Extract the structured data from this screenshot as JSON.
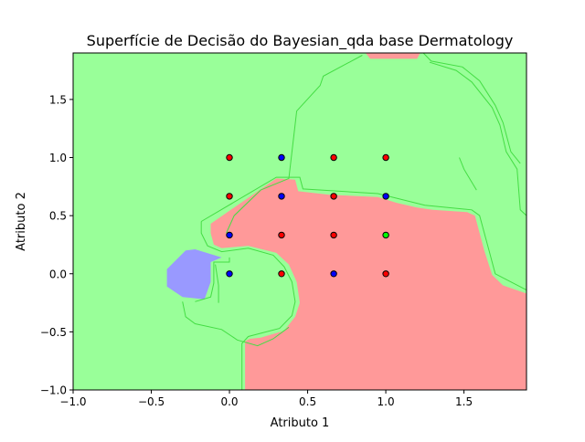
{
  "chart_data": {
    "type": "scatter",
    "title": "Superfície de Decisão do Bayesian_qda base Dermatology",
    "xlabel": "Atributo 1",
    "ylabel": "Atributo 2",
    "xlim": [
      -1.0,
      1.9
    ],
    "ylim": [
      -1.0,
      1.9
    ],
    "x_ticks": [
      -1.0,
      -0.5,
      0.0,
      0.5,
      1.0,
      1.5
    ],
    "y_ticks": [
      -1.0,
      -0.5,
      0.0,
      0.5,
      1.0,
      1.5
    ],
    "x_tick_labels": [
      "−1.0",
      "−0.5",
      "0.0",
      "0.5",
      "1.0",
      "1.5"
    ],
    "y_tick_labels": [
      "−1.0",
      "−0.5",
      "0.0",
      "0.5",
      "1.0",
      "1.5"
    ],
    "grid": false,
    "legend": "none",
    "region_colors": {
      "red": "#ff9999",
      "green": "#99ff99",
      "blue": "#9999ff"
    },
    "point_colors": {
      "red": "#ff0000",
      "green": "#00ff00",
      "blue": "#0000ff"
    },
    "decision_regions": [
      {
        "class": "blue",
        "polygon": [
          [
            -0.28,
            0.2
          ],
          [
            -0.4,
            0.04
          ],
          [
            -0.4,
            -0.11
          ],
          [
            -0.3,
            -0.2
          ],
          [
            -0.16,
            -0.22
          ],
          [
            -0.12,
            -0.07
          ],
          [
            -0.12,
            0.1
          ],
          [
            -0.05,
            0.14
          ],
          [
            -0.22,
            0.21
          ]
        ]
      },
      {
        "class": "red",
        "polygon": [
          [
            0.87,
            1.9
          ],
          [
            1.22,
            1.9
          ],
          [
            1.2,
            1.85
          ],
          [
            0.9,
            1.85
          ]
        ]
      },
      {
        "class": "red",
        "polygon": [
          [
            -0.12,
            0.43
          ],
          [
            0.17,
            0.7
          ],
          [
            0.3,
            0.82
          ],
          [
            0.42,
            0.81
          ],
          [
            0.44,
            0.71
          ],
          [
            0.64,
            0.68
          ],
          [
            0.95,
            0.66
          ],
          [
            1.07,
            0.61
          ],
          [
            1.2,
            0.57
          ],
          [
            1.3,
            0.55
          ],
          [
            1.52,
            0.53
          ],
          [
            1.57,
            0.5
          ],
          [
            1.63,
            0.2
          ],
          [
            1.68,
            -0.01
          ],
          [
            1.75,
            -0.1
          ],
          [
            1.9,
            -0.17
          ],
          [
            1.9,
            -1.0
          ],
          [
            0.1,
            -1.0
          ],
          [
            0.1,
            -0.58
          ],
          [
            0.13,
            -0.56
          ],
          [
            0.2,
            -0.55
          ],
          [
            0.35,
            -0.49
          ],
          [
            0.42,
            -0.37
          ],
          [
            0.45,
            -0.25
          ],
          [
            0.43,
            -0.07
          ],
          [
            0.38,
            0.08
          ],
          [
            0.3,
            0.18
          ],
          [
            0.12,
            0.24
          ],
          [
            -0.05,
            0.22
          ],
          [
            -0.1,
            0.25
          ],
          [
            -0.12,
            0.35
          ]
        ]
      }
    ],
    "decision_boundaries": [
      [
        [
          -0.18,
          0.45
        ],
        [
          0.3,
          0.83
        ],
        [
          0.45,
          0.83
        ],
        [
          0.47,
          0.73
        ],
        [
          0.95,
          0.69
        ],
        [
          1.25,
          0.59
        ],
        [
          1.55,
          0.55
        ],
        [
          1.6,
          0.5
        ],
        [
          1.66,
          0.2
        ],
        [
          1.7,
          0.0
        ],
        [
          1.9,
          -0.14
        ]
      ],
      [
        [
          0.08,
          -1.0
        ],
        [
          0.08,
          -0.6
        ],
        [
          0.12,
          -0.54
        ],
        [
          0.32,
          -0.47
        ],
        [
          0.4,
          -0.36
        ],
        [
          0.42,
          -0.24
        ],
        [
          0.4,
          -0.07
        ],
        [
          0.35,
          0.06
        ],
        [
          0.28,
          0.16
        ],
        [
          0.12,
          0.22
        ],
        [
          -0.05,
          0.19
        ],
        [
          -0.14,
          0.24
        ],
        [
          -0.18,
          0.35
        ],
        [
          -0.18,
          0.45
        ]
      ],
      [
        [
          -0.22,
          -0.24
        ],
        [
          -0.12,
          -0.2
        ],
        [
          -0.1,
          -0.08
        ],
        [
          -0.1,
          0.1
        ],
        [
          0.0,
          0.1
        ],
        [
          0.0,
          0.14
        ]
      ],
      [
        [
          -0.07,
          -0.25
        ],
        [
          -0.07,
          -0.1
        ],
        [
          -0.09,
          0.08
        ]
      ],
      [
        [
          -0.02,
          0.35
        ],
        [
          0.03,
          0.5
        ],
        [
          0.2,
          0.72
        ],
        [
          0.38,
          0.82
        ],
        [
          0.43,
          1.4
        ],
        [
          0.58,
          1.62
        ],
        [
          0.6,
          1.7
        ],
        [
          0.85,
          1.88
        ]
      ],
      [
        [
          1.24,
          1.9
        ],
        [
          1.29,
          1.83
        ],
        [
          1.49,
          1.78
        ],
        [
          1.6,
          1.66
        ],
        [
          1.7,
          1.45
        ],
        [
          1.75,
          1.3
        ],
        [
          1.8,
          1.05
        ],
        [
          1.86,
          0.95
        ]
      ],
      [
        [
          1.28,
          1.82
        ],
        [
          1.45,
          1.75
        ],
        [
          1.55,
          1.65
        ],
        [
          1.68,
          1.43
        ],
        [
          1.73,
          1.28
        ],
        [
          1.77,
          1.05
        ],
        [
          1.84,
          0.9
        ],
        [
          1.86,
          0.55
        ],
        [
          1.9,
          0.5
        ]
      ],
      [
        [
          1.47,
          1.0
        ],
        [
          1.5,
          0.9
        ],
        [
          1.58,
          0.72
        ]
      ],
      [
        [
          -0.3,
          -0.24
        ],
        [
          -0.28,
          -0.37
        ],
        [
          -0.22,
          -0.43
        ],
        [
          -0.05,
          -0.48
        ],
        [
          0.05,
          -0.57
        ],
        [
          0.18,
          -0.62
        ],
        [
          0.28,
          -0.56
        ],
        [
          0.38,
          -0.46
        ]
      ]
    ],
    "points": [
      {
        "x": 0.0,
        "y": 1.0,
        "class": "red"
      },
      {
        "x": 0.333,
        "y": 1.0,
        "class": "blue"
      },
      {
        "x": 0.667,
        "y": 1.0,
        "class": "red"
      },
      {
        "x": 1.0,
        "y": 1.0,
        "class": "red"
      },
      {
        "x": 0.0,
        "y": 0.667,
        "class": "red"
      },
      {
        "x": 0.333,
        "y": 0.667,
        "class": "blue"
      },
      {
        "x": 0.667,
        "y": 0.667,
        "class": "red"
      },
      {
        "x": 1.0,
        "y": 0.667,
        "class": "blue"
      },
      {
        "x": 0.0,
        "y": 0.333,
        "class": "blue"
      },
      {
        "x": 0.333,
        "y": 0.333,
        "class": "red"
      },
      {
        "x": 0.667,
        "y": 0.333,
        "class": "red"
      },
      {
        "x": 1.0,
        "y": 0.333,
        "class": "green"
      },
      {
        "x": 0.0,
        "y": 0.0,
        "class": "blue"
      },
      {
        "x": 0.333,
        "y": 0.0,
        "class": "red"
      },
      {
        "x": 0.667,
        "y": 0.0,
        "class": "blue"
      },
      {
        "x": 1.0,
        "y": 0.0,
        "class": "red"
      }
    ]
  }
}
